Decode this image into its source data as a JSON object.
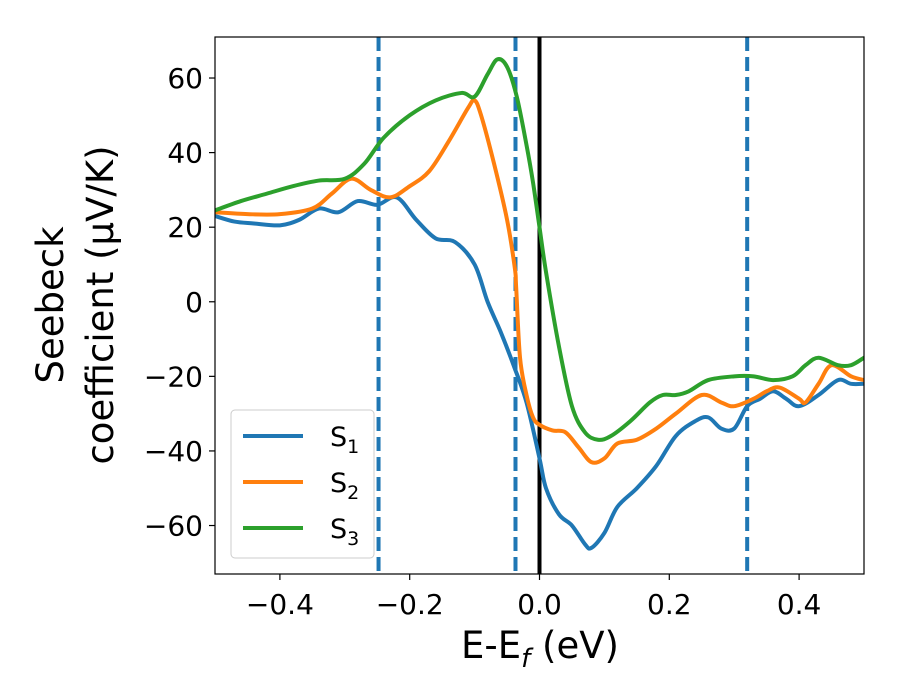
{
  "chart_data": {
    "type": "line",
    "xlabel": "E-E",
    "xlabel_subscript": "f",
    "xlabel_unit": " (eV)",
    "ylabel_line1": "Seebeck",
    "ylabel_line2": "coefficient  (μV/K)",
    "xlim": [
      -0.5,
      0.5
    ],
    "ylim": [
      -73,
      71
    ],
    "x_ticks": [
      -0.4,
      -0.2,
      0.0,
      0.2,
      0.4
    ],
    "x_tick_labels": [
      "−0.4",
      "−0.2",
      "0.0",
      "0.2",
      "0.4"
    ],
    "y_ticks": [
      60,
      40,
      20,
      0,
      -20,
      -40,
      -60
    ],
    "y_tick_labels": [
      "60",
      "40",
      "20",
      "0",
      "−20",
      "−40",
      "−60"
    ],
    "grid": false,
    "legend_position": "lower-left",
    "vertical_lines": [
      {
        "x": 0.0,
        "style": "solid",
        "color": "#000000"
      },
      {
        "x": -0.248,
        "style": "dashed",
        "color": "#1f77b4"
      },
      {
        "x": -0.037,
        "style": "dashed",
        "color": "#1f77b4"
      },
      {
        "x": 0.32,
        "style": "dashed",
        "color": "#1f77b4"
      }
    ],
    "series": [
      {
        "name": "S",
        "subscript": "1",
        "color": "#1f77b4",
        "points": [
          [
            -0.5,
            23
          ],
          [
            -0.47,
            21.5
          ],
          [
            -0.44,
            21
          ],
          [
            -0.4,
            20.5
          ],
          [
            -0.37,
            22
          ],
          [
            -0.34,
            25
          ],
          [
            -0.31,
            24
          ],
          [
            -0.28,
            27
          ],
          [
            -0.25,
            26
          ],
          [
            -0.22,
            28
          ],
          [
            -0.19,
            22
          ],
          [
            -0.16,
            17
          ],
          [
            -0.13,
            16
          ],
          [
            -0.1,
            10
          ],
          [
            -0.08,
            0
          ],
          [
            -0.06,
            -8
          ],
          [
            -0.04,
            -17
          ],
          [
            -0.02,
            -27
          ],
          [
            0.0,
            -42
          ],
          [
            0.01,
            -50
          ],
          [
            0.03,
            -57
          ],
          [
            0.05,
            -60
          ],
          [
            0.07,
            -65
          ],
          [
            0.08,
            -66
          ],
          [
            0.1,
            -62
          ],
          [
            0.12,
            -55
          ],
          [
            0.15,
            -50
          ],
          [
            0.18,
            -44
          ],
          [
            0.21,
            -36
          ],
          [
            0.24,
            -32
          ],
          [
            0.26,
            -31
          ],
          [
            0.28,
            -34
          ],
          [
            0.3,
            -34
          ],
          [
            0.32,
            -28
          ],
          [
            0.34,
            -26
          ],
          [
            0.36,
            -24
          ],
          [
            0.38,
            -26
          ],
          [
            0.4,
            -28
          ],
          [
            0.43,
            -25
          ],
          [
            0.46,
            -21
          ],
          [
            0.48,
            -22
          ],
          [
            0.5,
            -22
          ]
        ]
      },
      {
        "name": "S",
        "subscript": "2",
        "color": "#ff7f0e",
        "points": [
          [
            -0.5,
            24
          ],
          [
            -0.45,
            23.5
          ],
          [
            -0.4,
            23.5
          ],
          [
            -0.35,
            25
          ],
          [
            -0.32,
            29
          ],
          [
            -0.29,
            33
          ],
          [
            -0.26,
            30
          ],
          [
            -0.23,
            28
          ],
          [
            -0.2,
            31
          ],
          [
            -0.17,
            35
          ],
          [
            -0.14,
            43
          ],
          [
            -0.11,
            52
          ],
          [
            -0.1,
            54
          ],
          [
            -0.09,
            50
          ],
          [
            -0.07,
            37
          ],
          [
            -0.05,
            22
          ],
          [
            -0.038,
            9
          ],
          [
            -0.036,
            4
          ],
          [
            -0.03,
            -15
          ],
          [
            -0.02,
            -25
          ],
          [
            -0.01,
            -31
          ],
          [
            0.0,
            -33
          ],
          [
            0.02,
            -34.5
          ],
          [
            0.04,
            -35
          ],
          [
            0.06,
            -39
          ],
          [
            0.08,
            -43
          ],
          [
            0.1,
            -42
          ],
          [
            0.12,
            -38
          ],
          [
            0.15,
            -37
          ],
          [
            0.18,
            -34
          ],
          [
            0.21,
            -30
          ],
          [
            0.25,
            -25
          ],
          [
            0.28,
            -27
          ],
          [
            0.3,
            -28
          ],
          [
            0.33,
            -26
          ],
          [
            0.35,
            -24
          ],
          [
            0.37,
            -23
          ],
          [
            0.4,
            -26
          ],
          [
            0.41,
            -27
          ],
          [
            0.43,
            -22
          ],
          [
            0.45,
            -17
          ],
          [
            0.48,
            -20
          ],
          [
            0.5,
            -21
          ]
        ]
      },
      {
        "name": "S",
        "subscript": "3",
        "color": "#2ca02c",
        "points": [
          [
            -0.5,
            24.5
          ],
          [
            -0.46,
            27
          ],
          [
            -0.42,
            29
          ],
          [
            -0.38,
            31
          ],
          [
            -0.34,
            32.5
          ],
          [
            -0.3,
            33
          ],
          [
            -0.27,
            37
          ],
          [
            -0.24,
            44
          ],
          [
            -0.2,
            50
          ],
          [
            -0.16,
            54
          ],
          [
            -0.12,
            56
          ],
          [
            -0.1,
            55
          ],
          [
            -0.08,
            61
          ],
          [
            -0.065,
            65
          ],
          [
            -0.05,
            63
          ],
          [
            -0.035,
            55
          ],
          [
            -0.02,
            42
          ],
          [
            -0.01,
            32
          ],
          [
            0.0,
            20
          ],
          [
            0.01,
            8
          ],
          [
            0.03,
            -12
          ],
          [
            0.05,
            -28
          ],
          [
            0.07,
            -35
          ],
          [
            0.09,
            -37
          ],
          [
            0.11,
            -36
          ],
          [
            0.14,
            -32
          ],
          [
            0.17,
            -27
          ],
          [
            0.19,
            -25
          ],
          [
            0.21,
            -25
          ],
          [
            0.23,
            -24
          ],
          [
            0.26,
            -21
          ],
          [
            0.3,
            -20
          ],
          [
            0.33,
            -20
          ],
          [
            0.36,
            -21
          ],
          [
            0.39,
            -20
          ],
          [
            0.41,
            -17
          ],
          [
            0.43,
            -15
          ],
          [
            0.46,
            -17
          ],
          [
            0.48,
            -17
          ],
          [
            0.5,
            -15
          ]
        ]
      }
    ]
  }
}
